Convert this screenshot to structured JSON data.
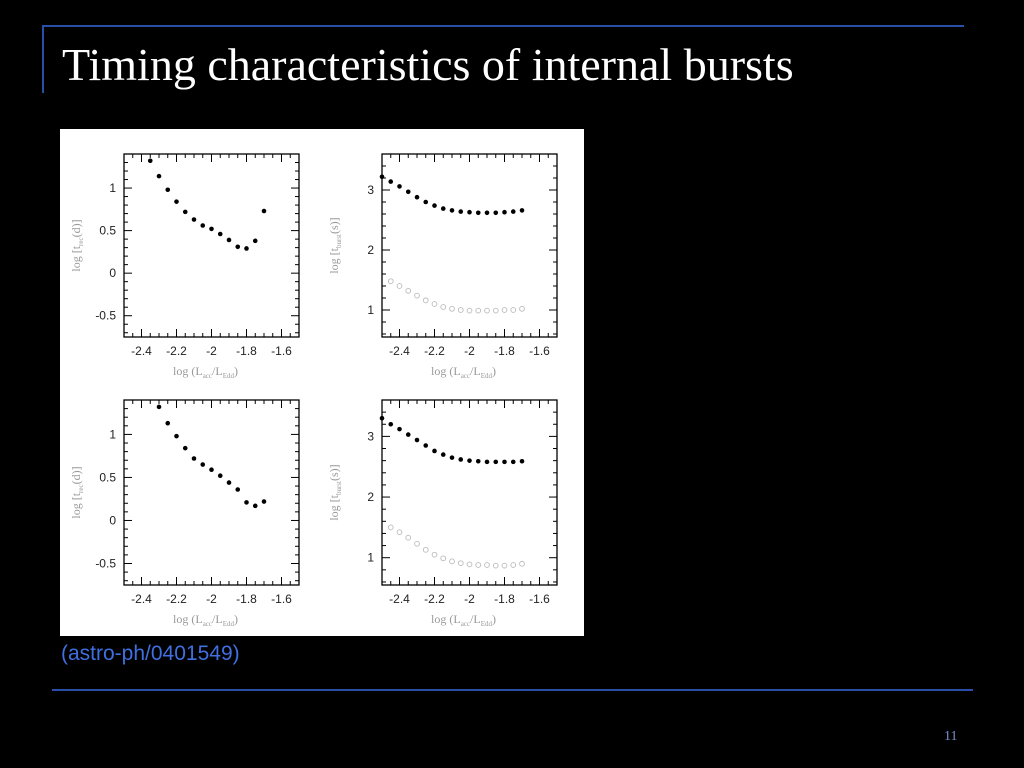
{
  "slide": {
    "title": "Timing characteristics of internal bursts",
    "citation": "(astro-ph/0401549)",
    "page_number": "11"
  },
  "colors": {
    "background": "#000000",
    "rule": "#2a4fa8",
    "title": "#ffffff",
    "citation": "#3f6fe0",
    "figure_bg": "#ffffff"
  },
  "chart_data": [
    {
      "type": "scatter",
      "position": "top-left",
      "xlabel": {
        "main": "log (L",
        "sub1": "acc",
        "mid": "/L",
        "sub2": "Edd",
        "end": ")"
      },
      "ylabel": {
        "main": "log [t",
        "sub": "rec",
        "end": "(d)]"
      },
      "xlim": [
        -2.5,
        -1.5
      ],
      "ylim": [
        -0.75,
        1.4
      ],
      "x_ticks": [
        -2.4,
        -2.2,
        -2,
        -1.8,
        -1.6
      ],
      "x_tick_labels": [
        "-2.4",
        "-2.2",
        "-2",
        "-1.8",
        "-1.6"
      ],
      "y_ticks": [
        -0.5,
        0,
        0.5,
        1
      ],
      "y_tick_labels": [
        "-0.5",
        "0",
        "0.5",
        "1"
      ],
      "series": [
        {
          "marker": "filled",
          "x": [
            -2.35,
            -2.3,
            -2.25,
            -2.2,
            -2.15,
            -2.1,
            -2.05,
            -2.0,
            -1.95,
            -1.9,
            -1.85,
            -1.8,
            -1.75,
            -1.7
          ],
          "y": [
            1.32,
            1.14,
            0.98,
            0.84,
            0.72,
            0.63,
            0.56,
            0.52,
            0.46,
            0.39,
            0.31,
            0.29,
            0.38,
            0.73
          ]
        }
      ]
    },
    {
      "type": "scatter",
      "position": "top-right",
      "xlabel": {
        "main": "log (L",
        "sub1": "acc",
        "mid": "/L",
        "sub2": "Edd",
        "end": ")"
      },
      "ylabel": {
        "main": "log [t",
        "sub": "burst",
        "end": "(s)]"
      },
      "xlim": [
        -2.5,
        -1.5
      ],
      "ylim": [
        0.55,
        3.6
      ],
      "x_ticks": [
        -2.4,
        -2.2,
        -2,
        -1.8,
        -1.6
      ],
      "x_tick_labels": [
        "-2.4",
        "-2.2",
        "-2",
        "-1.8",
        "-1.6"
      ],
      "y_ticks": [
        1,
        2,
        3
      ],
      "y_tick_labels": [
        "1",
        "2",
        "3"
      ],
      "series": [
        {
          "marker": "filled",
          "x": [
            -2.5,
            -2.45,
            -2.4,
            -2.35,
            -2.3,
            -2.25,
            -2.2,
            -2.15,
            -2.1,
            -2.05,
            -2.0,
            -1.95,
            -1.9,
            -1.85,
            -1.8,
            -1.75,
            -1.7
          ],
          "y": [
            3.22,
            3.14,
            3.06,
            2.97,
            2.88,
            2.8,
            2.74,
            2.69,
            2.66,
            2.64,
            2.63,
            2.62,
            2.62,
            2.62,
            2.63,
            2.64,
            2.66
          ]
        },
        {
          "marker": "open",
          "x": [
            -2.45,
            -2.4,
            -2.35,
            -2.3,
            -2.25,
            -2.2,
            -2.15,
            -2.1,
            -2.05,
            -2.0,
            -1.95,
            -1.9,
            -1.85,
            -1.8,
            -1.75,
            -1.7
          ],
          "y": [
            1.48,
            1.4,
            1.32,
            1.24,
            1.16,
            1.1,
            1.05,
            1.02,
            1.0,
            0.99,
            0.99,
            0.99,
            0.99,
            1.0,
            1.0,
            1.02
          ]
        }
      ]
    },
    {
      "type": "scatter",
      "position": "bottom-left",
      "xlabel": {
        "main": "log (L",
        "sub1": "acc",
        "mid": "/L",
        "sub2": "Edd",
        "end": ")"
      },
      "ylabel": {
        "main": "log [t",
        "sub": "rec",
        "end": "(d)]"
      },
      "xlim": [
        -2.5,
        -1.5
      ],
      "ylim": [
        -0.75,
        1.4
      ],
      "x_ticks": [
        -2.4,
        -2.2,
        -2,
        -1.8,
        -1.6
      ],
      "x_tick_labels": [
        "-2.4",
        "-2.2",
        "-2",
        "-1.8",
        "-1.6"
      ],
      "y_ticks": [
        -0.5,
        0,
        0.5,
        1
      ],
      "y_tick_labels": [
        "-0.5",
        "0",
        "0.5",
        "1"
      ],
      "series": [
        {
          "marker": "filled",
          "x": [
            -2.3,
            -2.25,
            -2.2,
            -2.15,
            -2.1,
            -2.05,
            -2.0,
            -1.95,
            -1.9,
            -1.85,
            -1.8,
            -1.75,
            -1.7
          ],
          "y": [
            1.32,
            1.13,
            0.98,
            0.84,
            0.72,
            0.65,
            0.59,
            0.52,
            0.44,
            0.36,
            0.21,
            0.17,
            0.22
          ]
        }
      ]
    },
    {
      "type": "scatter",
      "position": "bottom-right",
      "xlabel": {
        "main": "log (L",
        "sub1": "acc",
        "mid": "/L",
        "sub2": "Edd",
        "end": ")"
      },
      "ylabel": {
        "main": "log [t",
        "sub": "burst",
        "end": "(s)]"
      },
      "xlim": [
        -2.5,
        -1.5
      ],
      "ylim": [
        0.55,
        3.6
      ],
      "x_ticks": [
        -2.4,
        -2.2,
        -2,
        -1.8,
        -1.6
      ],
      "x_tick_labels": [
        "-2.4",
        "-2.2",
        "-2",
        "-1.8",
        "-1.6"
      ],
      "y_ticks": [
        1,
        2,
        3
      ],
      "y_tick_labels": [
        "1",
        "2",
        "3"
      ],
      "series": [
        {
          "marker": "filled",
          "x": [
            -2.5,
            -2.45,
            -2.4,
            -2.35,
            -2.3,
            -2.25,
            -2.2,
            -2.15,
            -2.1,
            -2.05,
            -2.0,
            -1.95,
            -1.9,
            -1.85,
            -1.8,
            -1.75,
            -1.7
          ],
          "y": [
            3.3,
            3.2,
            3.12,
            3.03,
            2.94,
            2.85,
            2.76,
            2.7,
            2.65,
            2.62,
            2.6,
            2.59,
            2.58,
            2.58,
            2.58,
            2.58,
            2.59
          ]
        },
        {
          "marker": "open",
          "x": [
            -2.45,
            -2.4,
            -2.35,
            -2.3,
            -2.25,
            -2.2,
            -2.15,
            -2.1,
            -2.05,
            -2.0,
            -1.95,
            -1.9,
            -1.85,
            -1.8,
            -1.75,
            -1.7
          ],
          "y": [
            1.5,
            1.42,
            1.33,
            1.23,
            1.13,
            1.05,
            0.99,
            0.94,
            0.91,
            0.89,
            0.88,
            0.88,
            0.87,
            0.87,
            0.88,
            0.9
          ]
        }
      ]
    }
  ]
}
